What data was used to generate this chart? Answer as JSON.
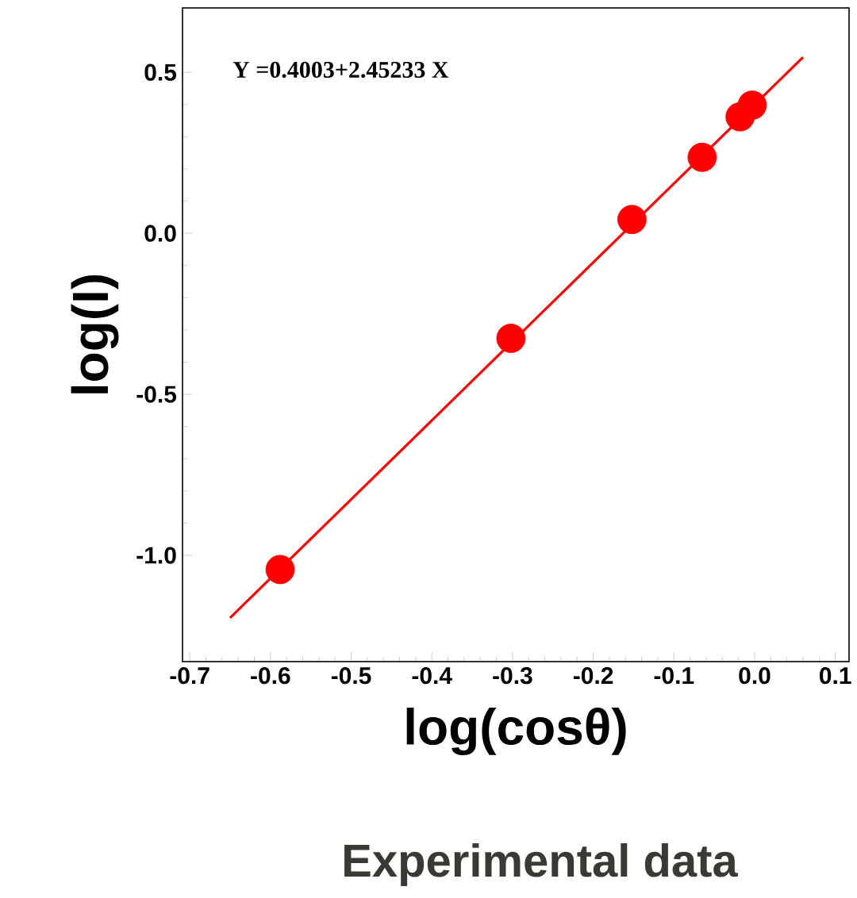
{
  "chart_data": {
    "type": "scatter",
    "xlabel": "log(cosθ)",
    "ylabel": "log(I)",
    "xlim": [
      -0.709,
      0.117
    ],
    "ylim": [
      -1.33,
      0.7
    ],
    "xticks": [
      {
        "value": -0.7,
        "label": "-0.7"
      },
      {
        "value": -0.6,
        "label": "-0.6"
      },
      {
        "value": -0.5,
        "label": "-0.5"
      },
      {
        "value": -0.4,
        "label": "-0.4"
      },
      {
        "value": -0.3,
        "label": "-0.3"
      },
      {
        "value": -0.2,
        "label": "-0.2"
      },
      {
        "value": -0.1,
        "label": "-0.1"
      },
      {
        "value": 0,
        "label": "0.0"
      },
      {
        "value": 0.1,
        "label": "0.1"
      }
    ],
    "yticks": [
      {
        "value": -1.0,
        "label": "-1.0"
      },
      {
        "value": -0.5,
        "label": "-0.5"
      },
      {
        "value": 0,
        "label": "0.0"
      },
      {
        "value": 0.5,
        "label": "0.5"
      }
    ],
    "marker": "circle",
    "series": [
      {
        "type": "line",
        "color": "#ff0000",
        "x": [
          -0.65,
          0.06
        ],
        "values": [
          -1.194,
          0.547
        ],
        "marker": "none"
      },
      {
        "type": "scatter",
        "color": "#ff0000",
        "x": [
          -0.588,
          -0.302,
          -0.152,
          -0.065,
          -0.018,
          -0.003
        ],
        "values": [
          -1.044,
          -0.326,
          0.043,
          0.236,
          0.362,
          0.398
        ]
      }
    ],
    "annotations": [
      "Y =0.4003+2.45233 X",
      "Experimental data"
    ]
  }
}
